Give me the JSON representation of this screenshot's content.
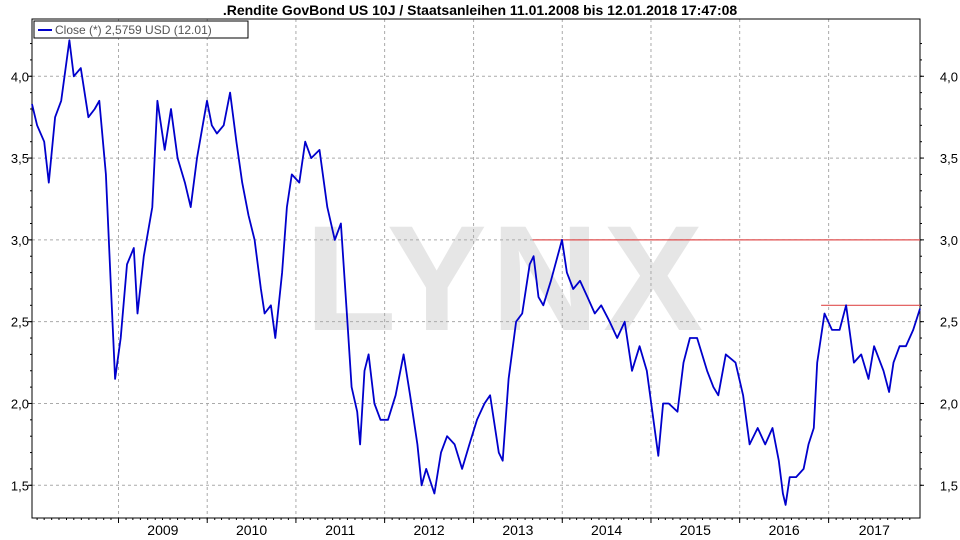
{
  "chart_data": {
    "type": "line",
    "title": ".Rendite GovBond US 10J / Staatsanleihen 11.01.2008 bis 12.01.2018 17:47:08",
    "watermark": "LYNX",
    "legend": {
      "label": "Close (*) 2,5759 USD (12.01)",
      "placement": "top-left",
      "color": "#0000cc"
    },
    "xlim": [
      "2008-01-11",
      "2018-01-12"
    ],
    "ylim": [
      1.3,
      4.35
    ],
    "y_ticks": [
      1.5,
      2.0,
      2.5,
      3.0,
      3.5,
      4.0
    ],
    "y_tick_labels": [
      "1,5",
      "2,0",
      "2,5",
      "3,0",
      "3,5",
      "4,0"
    ],
    "x_tick_labels": [
      "2009",
      "2010",
      "2011",
      "2012",
      "2013",
      "2014",
      "2015",
      "2016",
      "2017"
    ],
    "x_tick_dates": [
      "2009-01-01",
      "2010-01-01",
      "2011-01-01",
      "2012-01-01",
      "2013-01-01",
      "2014-01-01",
      "2015-01-01",
      "2016-01-01",
      "2017-01-01"
    ],
    "grid": true,
    "line_color": "#0000cc",
    "reference_lines": [
      {
        "value": 3.0,
        "from": "2013-09-01",
        "to": "2018-01-12",
        "color": "#e05050"
      },
      {
        "value": 2.6,
        "from": "2016-12-01",
        "to": "2018-01-12",
        "color": "#e05050"
      }
    ],
    "series": [
      {
        "name": "Close (*)",
        "x": [
          "2008-01-11",
          "2008-02-01",
          "2008-03-01",
          "2008-03-20",
          "2008-04-15",
          "2008-05-10",
          "2008-06-13",
          "2008-07-01",
          "2008-07-30",
          "2008-08-30",
          "2008-09-25",
          "2008-10-14",
          "2008-11-10",
          "2008-12-01",
          "2008-12-18",
          "2009-01-10",
          "2009-02-05",
          "2009-03-05",
          "2009-03-20",
          "2009-04-15",
          "2009-05-20",
          "2009-06-10",
          "2009-07-10",
          "2009-08-05",
          "2009-09-01",
          "2009-10-01",
          "2009-10-25",
          "2009-11-20",
          "2009-12-31",
          "2010-01-20",
          "2010-02-10",
          "2010-03-10",
          "2010-04-05",
          "2010-05-01",
          "2010-05-25",
          "2010-06-20",
          "2010-07-15",
          "2010-08-10",
          "2010-08-25",
          "2010-09-20",
          "2010-10-08",
          "2010-11-05",
          "2010-11-25",
          "2010-12-15",
          "2011-01-15",
          "2011-02-08",
          "2011-03-05",
          "2011-04-08",
          "2011-05-10",
          "2011-06-10",
          "2011-07-05",
          "2011-08-01",
          "2011-08-18",
          "2011-09-10",
          "2011-09-22",
          "2011-10-10",
          "2011-10-27",
          "2011-11-20",
          "2011-12-15",
          "2012-01-15",
          "2012-02-15",
          "2012-03-19",
          "2012-04-15",
          "2012-05-15",
          "2012-06-01",
          "2012-06-20",
          "2012-07-24",
          "2012-08-20",
          "2012-09-14",
          "2012-10-15",
          "2012-11-15",
          "2012-12-15",
          "2013-01-15",
          "2013-02-15",
          "2013-03-10",
          "2013-04-15",
          "2013-05-01",
          "2013-05-25",
          "2013-06-25",
          "2013-07-20",
          "2013-08-20",
          "2013-09-05",
          "2013-09-25",
          "2013-10-15",
          "2013-11-15",
          "2013-12-31",
          "2014-01-20",
          "2014-02-15",
          "2014-03-15",
          "2014-04-15",
          "2014-05-15",
          "2014-06-10",
          "2014-07-15",
          "2014-08-15",
          "2014-09-15",
          "2014-10-15",
          "2014-11-15",
          "2014-12-15",
          "2015-01-31",
          "2015-02-20",
          "2015-03-15",
          "2015-04-20",
          "2015-05-15",
          "2015-06-10",
          "2015-07-10",
          "2015-08-20",
          "2015-09-15",
          "2015-10-05",
          "2015-11-05",
          "2015-12-15",
          "2016-01-15",
          "2016-02-11",
          "2016-03-15",
          "2016-04-15",
          "2016-05-15",
          "2016-06-10",
          "2016-06-27",
          "2016-07-08",
          "2016-07-25",
          "2016-08-20",
          "2016-09-20",
          "2016-10-10",
          "2016-11-01",
          "2016-11-15",
          "2016-12-15",
          "2017-01-15",
          "2017-02-15",
          "2017-03-14",
          "2017-04-15",
          "2017-05-15",
          "2017-06-14",
          "2017-07-07",
          "2017-08-15",
          "2017-09-07",
          "2017-09-25",
          "2017-10-20",
          "2017-11-15",
          "2017-12-15",
          "2018-01-12"
        ],
        "values": [
          3.83,
          3.7,
          3.6,
          3.35,
          3.75,
          3.85,
          4.22,
          4.0,
          4.05,
          3.75,
          3.8,
          3.85,
          3.4,
          2.7,
          2.15,
          2.4,
          2.85,
          2.95,
          2.55,
          2.9,
          3.2,
          3.85,
          3.55,
          3.8,
          3.5,
          3.35,
          3.2,
          3.5,
          3.85,
          3.7,
          3.65,
          3.7,
          3.9,
          3.6,
          3.35,
          3.15,
          3.0,
          2.7,
          2.55,
          2.6,
          2.4,
          2.8,
          3.2,
          3.4,
          3.35,
          3.6,
          3.5,
          3.55,
          3.2,
          3.0,
          3.1,
          2.5,
          2.1,
          1.95,
          1.75,
          2.2,
          2.3,
          2.0,
          1.9,
          1.9,
          2.05,
          2.3,
          2.05,
          1.75,
          1.5,
          1.6,
          1.45,
          1.7,
          1.8,
          1.75,
          1.6,
          1.75,
          1.9,
          2.0,
          2.05,
          1.7,
          1.65,
          2.15,
          2.5,
          2.55,
          2.85,
          2.9,
          2.65,
          2.6,
          2.75,
          3.0,
          2.8,
          2.7,
          2.75,
          2.65,
          2.55,
          2.6,
          2.5,
          2.4,
          2.5,
          2.2,
          2.35,
          2.2,
          1.68,
          2.0,
          2.0,
          1.95,
          2.25,
          2.4,
          2.4,
          2.2,
          2.1,
          2.05,
          2.3,
          2.25,
          2.05,
          1.75,
          1.85,
          1.75,
          1.85,
          1.65,
          1.45,
          1.38,
          1.55,
          1.55,
          1.6,
          1.75,
          1.85,
          2.25,
          2.55,
          2.45,
          2.45,
          2.6,
          2.25,
          2.3,
          2.15,
          2.35,
          2.2,
          2.07,
          2.25,
          2.35,
          2.35,
          2.45,
          2.58
        ]
      }
    ]
  }
}
